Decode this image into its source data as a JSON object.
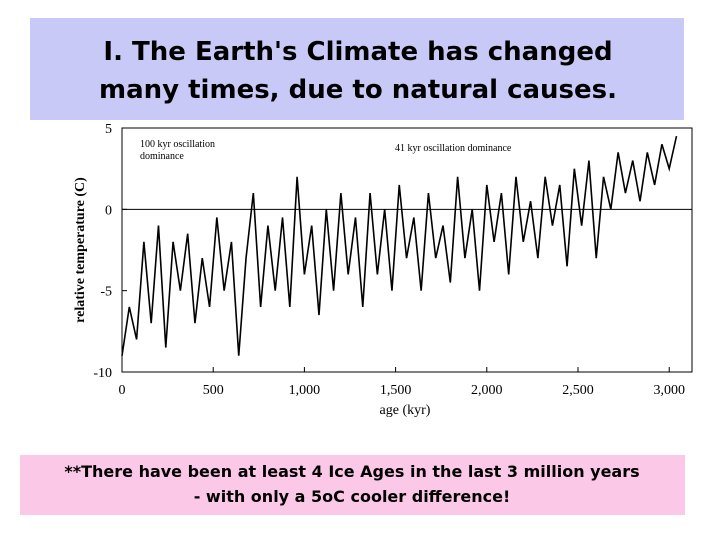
{
  "chart_data": {
    "type": "line",
    "title": "I. The Earth's Climate has changed",
    "subtitle": "many times, due to natural causes.",
    "xlabel": "age (kyr)",
    "ylabel": "relative temperature (C)",
    "annotations": [
      "100 kyr oscillation",
      "dominance",
      "41 kyr oscillation dominance"
    ],
    "footnote": [
      "**There have been at least 4 Ice Ages in the last 3 million years",
      "- with only a 5oC cooler difference!"
    ],
    "x": [
      0,
      40,
      80,
      120,
      160,
      200,
      240,
      280,
      320,
      360,
      400,
      440,
      480,
      520,
      560,
      600,
      640,
      680,
      720,
      760,
      800,
      840,
      880,
      920,
      960,
      1000,
      1040,
      1080,
      1120,
      1160,
      1200,
      1240,
      1280,
      1320,
      1360,
      1400,
      1440,
      1480,
      1520,
      1560,
      1600,
      1640,
      1680,
      1720,
      1760,
      1800,
      1840,
      1880,
      1920,
      1960,
      2000,
      2040,
      2080,
      2120,
      2160,
      2200,
      2240,
      2280,
      2320,
      2360,
      2400,
      2440,
      2480,
      2520,
      2560,
      2600,
      2640,
      2680,
      2720,
      2760,
      2800,
      2840,
      2880,
      2920,
      2960,
      3000,
      3040
    ],
    "series": [
      {
        "name": "temperature",
        "color": "#000000",
        "values": [
          -9,
          -6,
          -8,
          -2,
          -7,
          -1,
          -8.5,
          -2,
          -5,
          -1.5,
          -7,
          -3,
          -6,
          -0.5,
          -5,
          -2,
          -9,
          -3,
          1,
          -6,
          -1,
          -5,
          -0.5,
          -6,
          2,
          -4,
          -1,
          -6.5,
          0,
          -5,
          1,
          -4,
          -0.5,
          -6,
          1,
          -4,
          0,
          -5,
          1.5,
          -3,
          -0.5,
          -5,
          1,
          -3,
          -1,
          -4.5,
          2,
          -3,
          0,
          -5,
          1.5,
          -2,
          1,
          -4,
          2,
          -2,
          0.5,
          -3,
          2,
          -1,
          1.5,
          -3.5,
          2.5,
          -1,
          3,
          -3,
          2,
          0,
          3.5,
          1,
          3,
          0.5,
          3.5,
          1.5,
          4,
          2.5,
          4.5
        ]
      }
    ],
    "xlim": [
      0,
      3125
    ],
    "ylim": [
      -10,
      5
    ],
    "xticks": [
      0,
      500,
      {
        "value": 1000,
        "label": "1,000"
      },
      {
        "value": 1500,
        "label": "1,500"
      },
      {
        "value": 2000,
        "label": "2,000"
      },
      {
        "value": 2500,
        "label": "2,500"
      },
      {
        "value": 3000,
        "label": "3,000"
      }
    ],
    "yticks": [
      5,
      0,
      -5,
      -10
    ],
    "zero_line": true
  }
}
